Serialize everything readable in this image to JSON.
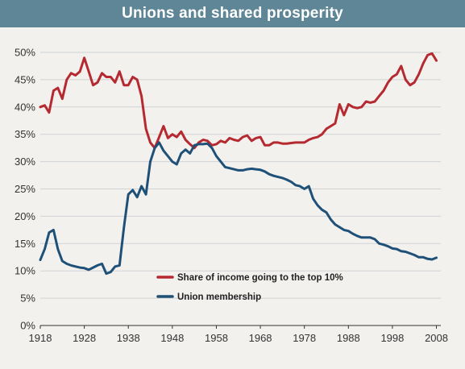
{
  "chart_data": {
    "type": "line",
    "title": "Unions and shared prosperity",
    "xlabel": "",
    "ylabel": "",
    "xlim": [
      1918,
      2009
    ],
    "ylim": [
      0,
      50
    ],
    "grid": true,
    "legend_position": "center",
    "x_ticks": [
      "1918",
      "1928",
      "1938",
      "1948",
      "1958",
      "1968",
      "1978",
      "1988",
      "1998",
      "2008"
    ],
    "y_ticks": [
      "0%",
      "5%",
      "10%",
      "15%",
      "20%",
      "25%",
      "30%",
      "35%",
      "40%",
      "45%",
      "50%"
    ],
    "series": [
      {
        "name": "Share of income going to the top 10%",
        "color": "#b52a30",
        "x": [
          1918,
          1919,
          1920,
          1921,
          1922,
          1923,
          1924,
          1925,
          1926,
          1927,
          1928,
          1929,
          1930,
          1931,
          1932,
          1933,
          1934,
          1935,
          1936,
          1937,
          1938,
          1939,
          1940,
          1941,
          1942,
          1943,
          1944,
          1945,
          1946,
          1947,
          1948,
          1949,
          1950,
          1951,
          1952,
          1953,
          1954,
          1955,
          1956,
          1957,
          1958,
          1959,
          1960,
          1961,
          1962,
          1963,
          1964,
          1965,
          1966,
          1967,
          1968,
          1969,
          1970,
          1971,
          1972,
          1973,
          1974,
          1975,
          1976,
          1977,
          1978,
          1979,
          1980,
          1981,
          1982,
          1983,
          1984,
          1985,
          1986,
          1987,
          1988,
          1989,
          1990,
          1991,
          1992,
          1993,
          1994,
          1995,
          1996,
          1997,
          1998,
          1999,
          2000,
          2001,
          2002,
          2003,
          2004,
          2005,
          2006,
          2007,
          2008
        ],
        "values": [
          40.0,
          40.3,
          39.0,
          43.0,
          43.5,
          41.5,
          45.0,
          46.2,
          45.8,
          46.5,
          49.0,
          46.5,
          44.0,
          44.5,
          46.2,
          45.5,
          45.5,
          44.5,
          46.5,
          44.0,
          44.0,
          45.5,
          45.0,
          42.0,
          36.0,
          33.5,
          32.5,
          34.5,
          36.5,
          34.3,
          35.0,
          34.5,
          35.5,
          34.0,
          33.2,
          32.5,
          33.5,
          34.0,
          33.8,
          33.0,
          33.2,
          33.8,
          33.5,
          34.3,
          34.0,
          33.8,
          34.5,
          34.8,
          33.8,
          34.3,
          34.5,
          33.0,
          33.0,
          33.5,
          33.5,
          33.3,
          33.3,
          33.4,
          33.5,
          33.5,
          33.5,
          34.0,
          34.3,
          34.5,
          35.0,
          36.0,
          36.5,
          37.0,
          40.5,
          38.5,
          40.5,
          40.0,
          39.8,
          40.0,
          41.0,
          40.8,
          41.0,
          42.0,
          43.0,
          44.5,
          45.5,
          46.0,
          47.5,
          45.0,
          44.0,
          44.5,
          46.0,
          48.0,
          49.5,
          49.8,
          48.5
        ]
      },
      {
        "name": "Union membership",
        "color": "#1f5077",
        "x": [
          1918,
          1919,
          1920,
          1921,
          1922,
          1923,
          1924,
          1925,
          1926,
          1927,
          1928,
          1929,
          1930,
          1931,
          1932,
          1933,
          1934,
          1935,
          1936,
          1937,
          1938,
          1939,
          1940,
          1941,
          1942,
          1943,
          1944,
          1945,
          1946,
          1947,
          1948,
          1949,
          1950,
          1951,
          1952,
          1953,
          1954,
          1955,
          1956,
          1957,
          1958,
          1959,
          1960,
          1961,
          1962,
          1963,
          1964,
          1965,
          1966,
          1967,
          1968,
          1969,
          1970,
          1971,
          1972,
          1973,
          1974,
          1975,
          1976,
          1977,
          1978,
          1979,
          1980,
          1981,
          1982,
          1983,
          1984,
          1985,
          1986,
          1987,
          1988,
          1989,
          1990,
          1991,
          1992,
          1993,
          1994,
          1995,
          1996,
          1997,
          1998,
          1999,
          2000,
          2001,
          2002,
          2003,
          2004,
          2005,
          2006,
          2007,
          2008
        ],
        "values": [
          12.0,
          14.0,
          17.0,
          17.5,
          14.0,
          11.8,
          11.3,
          11.0,
          10.8,
          10.6,
          10.5,
          10.2,
          10.6,
          11.0,
          11.3,
          9.5,
          9.8,
          10.8,
          11.0,
          18.0,
          24.0,
          24.8,
          23.5,
          25.5,
          24.0,
          30.0,
          32.5,
          33.5,
          32.0,
          31.0,
          30.0,
          29.5,
          31.5,
          32.2,
          31.5,
          33.0,
          33.2,
          33.2,
          33.3,
          32.5,
          31.0,
          30.0,
          29.0,
          28.8,
          28.6,
          28.4,
          28.4,
          28.6,
          28.7,
          28.6,
          28.5,
          28.2,
          27.7,
          27.4,
          27.2,
          27.0,
          26.7,
          26.3,
          25.7,
          25.5,
          25.0,
          25.5,
          23.2,
          22.0,
          21.2,
          20.7,
          19.4,
          18.5,
          18.0,
          17.5,
          17.3,
          16.8,
          16.4,
          16.1,
          16.1,
          16.1,
          15.8,
          15.0,
          14.8,
          14.5,
          14.1,
          14.0,
          13.6,
          13.5,
          13.2,
          12.9,
          12.5,
          12.5,
          12.2,
          12.1,
          12.4
        ]
      }
    ]
  }
}
